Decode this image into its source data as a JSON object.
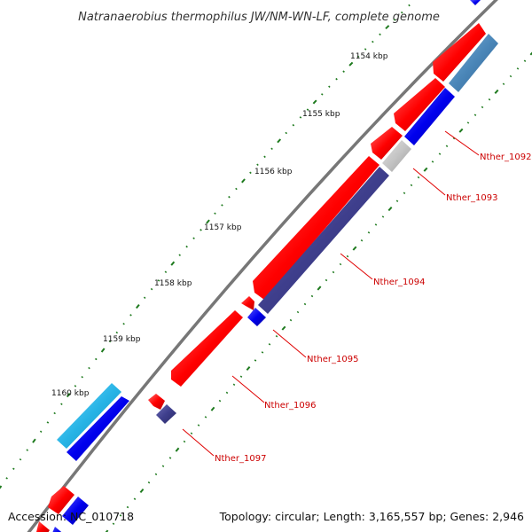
{
  "title": "Natranaerobius thermophilus JW/NM-WN-LF, complete genome",
  "footer": {
    "accession": "Accession: NC_010718",
    "summary": "Topology: circular; Length: 3,165,557 bp; Genes: 2,946"
  },
  "ticks": [
    {
      "label": "1154 kbp"
    },
    {
      "label": "1155 kbp"
    },
    {
      "label": "1156 kbp"
    },
    {
      "label": "1157 kbp"
    },
    {
      "label": "1158 kbp"
    },
    {
      "label": "1159 kbp"
    },
    {
      "label": "1160 kbp"
    }
  ],
  "genes": [
    {
      "label": "Nther_1092"
    },
    {
      "label": "Nther_1093"
    },
    {
      "label": "Nther_1094"
    },
    {
      "label": "Nther_1095"
    },
    {
      "label": "Nther_1096"
    },
    {
      "label": "Nther_1097"
    }
  ],
  "colors": {
    "cds": "#ff0000",
    "feature_blue": "#0000ee",
    "feature_navy": "#3e3e8c",
    "feature_steel": "#4a86b8",
    "feature_grey": "#c4c4c4",
    "feature_cyan": "#27b4e6",
    "backbone": "#777777",
    "gene_label": "#cc0000",
    "tick_mark": "#1e7a1e"
  }
}
